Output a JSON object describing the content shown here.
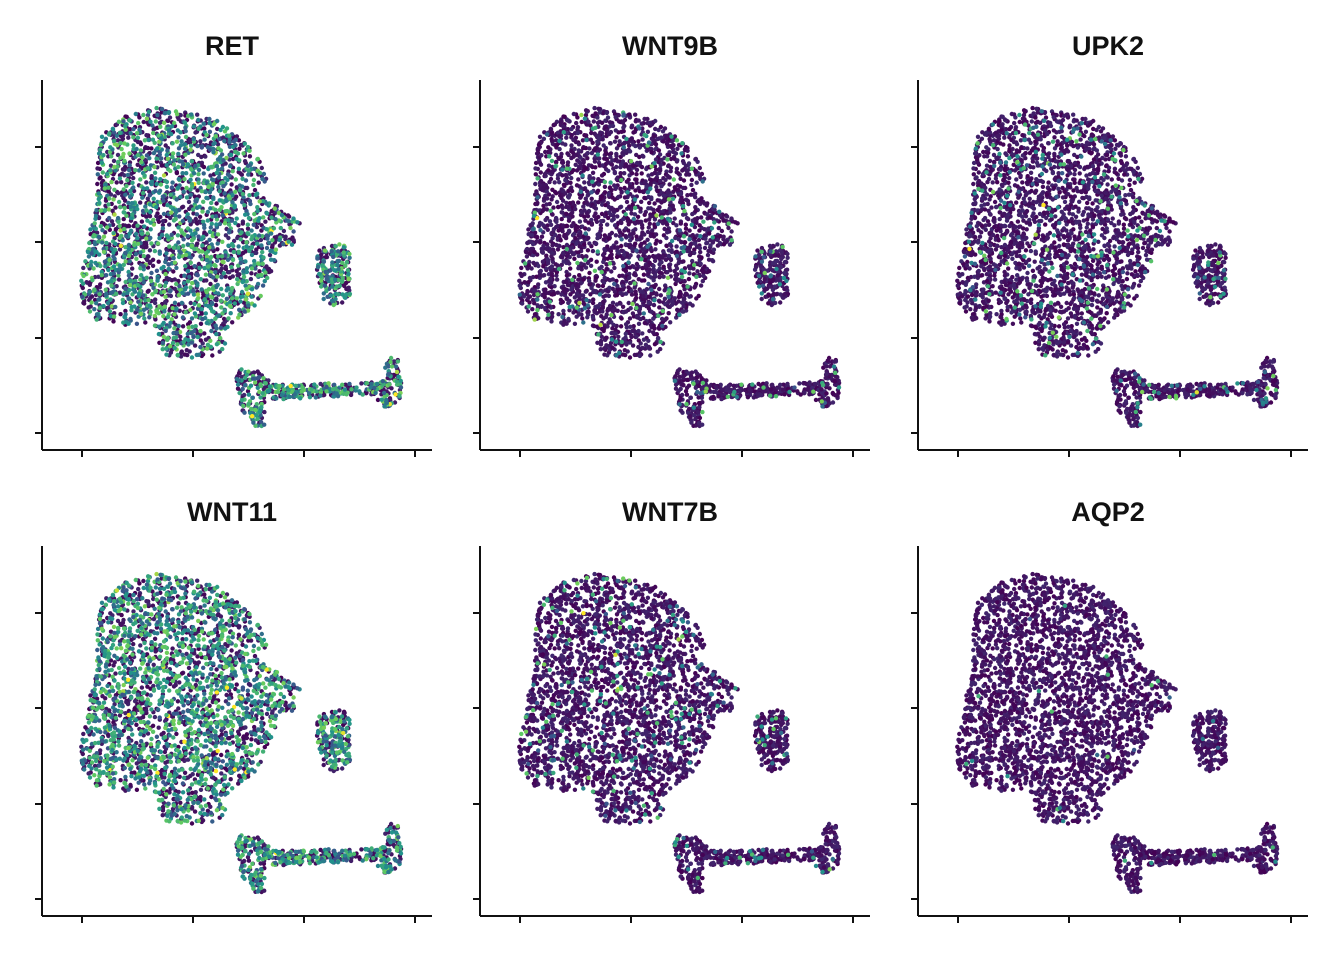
{
  "figure": {
    "colormap": "viridis",
    "colors": {
      "low": "#440154",
      "mid": "#21918c",
      "high": "#fde725",
      "axis": "#111111"
    },
    "axis_ticks": {
      "x_count": 4,
      "y_count": 4,
      "tick_labels_shown": false
    },
    "grid": false
  },
  "chart_data": [
    {
      "type": "scatter",
      "title": "RET",
      "expression_level": 0.55
    },
    {
      "type": "scatter",
      "title": "WNT9B",
      "expression_level": 0.06
    },
    {
      "type": "scatter",
      "title": "UPK2",
      "expression_level": 0.09
    },
    {
      "type": "scatter",
      "title": "WNT11",
      "expression_level": 0.6
    },
    {
      "type": "scatter",
      "title": "WNT7B",
      "expression_level": 0.07
    },
    {
      "type": "scatter",
      "title": "AQP2",
      "expression_level": 0.01
    }
  ]
}
